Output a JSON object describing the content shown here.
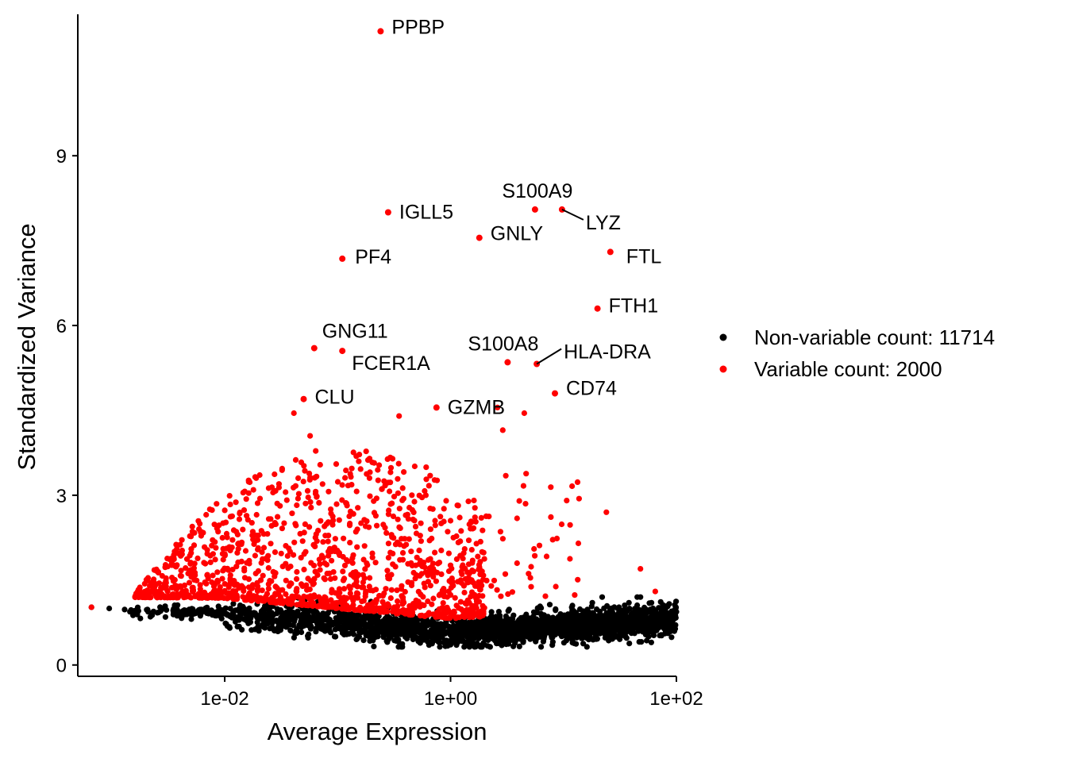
{
  "chart_data": {
    "type": "scatter",
    "xlabel": "Average Expression",
    "ylabel": "Standardized Variance",
    "x_scale": "log10",
    "xlim": [
      0.0005,
      100
    ],
    "ylim": [
      -0.2,
      11.5
    ],
    "x_ticks": [
      {
        "value": 0.01,
        "label": "1e-02"
      },
      {
        "value": 1,
        "label": "1e+00"
      },
      {
        "value": 100,
        "label": "1e+02"
      }
    ],
    "y_ticks": [
      {
        "value": 0,
        "label": "0"
      },
      {
        "value": 3,
        "label": "3"
      },
      {
        "value": 6,
        "label": "6"
      },
      {
        "value": 9,
        "label": "9"
      }
    ],
    "grid": false,
    "legend_position": "right",
    "colors": {
      "nonvariable": "#000000",
      "variable": "#ff0000"
    },
    "series": [
      {
        "name": "Non-variable count: 11714",
        "color": "#000000",
        "count": 11714
      },
      {
        "name": "Variable count: 2000",
        "color": "#ff0000",
        "count": 2000
      }
    ],
    "labeled_genes": [
      {
        "label": "PPBP",
        "x": 0.24,
        "y": 11.2
      },
      {
        "label": "S100A9",
        "x": 5.6,
        "y": 8.05
      },
      {
        "label": "LYZ",
        "x": 9.7,
        "y": 8.05
      },
      {
        "label": "IGLL5",
        "x": 0.28,
        "y": 8.0
      },
      {
        "label": "GNLY",
        "x": 1.8,
        "y": 7.55
      },
      {
        "label": "FTL",
        "x": 26.0,
        "y": 7.3
      },
      {
        "label": "PF4",
        "x": 0.11,
        "y": 7.18
      },
      {
        "label": "FTH1",
        "x": 20.0,
        "y": 6.3
      },
      {
        "label": "GNG11",
        "x": 0.062,
        "y": 5.6
      },
      {
        "label": "FCER1A",
        "x": 0.11,
        "y": 5.55
      },
      {
        "label": "S100A8",
        "x": 3.2,
        "y": 5.35
      },
      {
        "label": "HLA-DRA",
        "x": 5.8,
        "y": 5.32
      },
      {
        "label": "CD74",
        "x": 8.4,
        "y": 4.8
      },
      {
        "label": "CLU",
        "x": 0.05,
        "y": 4.7
      },
      {
        "label": "GZMB",
        "x": 0.75,
        "y": 4.55
      }
    ],
    "other_highlighted_points": [
      {
        "x": 0.35,
        "y": 4.4
      },
      {
        "x": 2.6,
        "y": 4.55
      },
      {
        "x": 4.5,
        "y": 4.45
      },
      {
        "x": 2.9,
        "y": 4.15
      },
      {
        "x": 0.041,
        "y": 4.45
      },
      {
        "x": 0.057,
        "y": 4.05
      },
      {
        "x": 24.0,
        "y": 2.7
      },
      {
        "x": 48.0,
        "y": 1.7
      },
      {
        "x": 65.0,
        "y": 1.3
      },
      {
        "x": 48.0,
        "y": 1.2
      },
      {
        "x": 40.0,
        "y": 0.9
      },
      {
        "x": 0.00066,
        "y": 1.02
      }
    ]
  }
}
